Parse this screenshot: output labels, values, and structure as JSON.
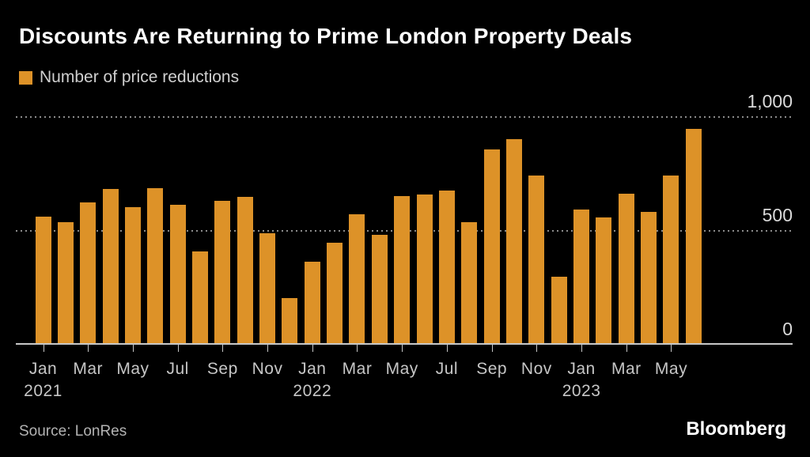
{
  "chart_data": {
    "type": "bar",
    "title": "Discounts Are Returning to Prime London Property Deals",
    "legend": "Number of price reductions",
    "bar_color": "#DD9228",
    "ylim": [
      0,
      1000
    ],
    "grid": "dotted horizontal at 500 and 1000",
    "legend_position": "top-left",
    "yticks": [
      {
        "value": 0,
        "label": "0"
      },
      {
        "value": 500,
        "label": "500"
      },
      {
        "value": 1000,
        "label": "1,000"
      }
    ],
    "x": [
      "Jan 2021",
      "Feb 2021",
      "Mar 2021",
      "Apr 2021",
      "May 2021",
      "Jun 2021",
      "Jul 2021",
      "Aug 2021",
      "Sep 2021",
      "Oct 2021",
      "Nov 2021",
      "Dec 2021",
      "Jan 2022",
      "Feb 2022",
      "Mar 2022",
      "Apr 2022",
      "May 2022",
      "Jun 2022",
      "Jul 2022",
      "Aug 2022",
      "Sep 2022",
      "Oct 2022",
      "Nov 2022",
      "Dec 2022",
      "Jan 2023",
      "Feb 2023",
      "Mar 2023",
      "Apr 2023",
      "May 2023",
      "Jun 2023"
    ],
    "values": [
      560,
      535,
      620,
      680,
      600,
      685,
      610,
      405,
      630,
      645,
      485,
      200,
      360,
      445,
      570,
      480,
      650,
      655,
      675,
      535,
      855,
      900,
      740,
      295,
      590,
      555,
      660,
      580,
      740,
      945
    ],
    "xticks": [
      {
        "index": 0,
        "month": "Jan",
        "year": "2021"
      },
      {
        "index": 2,
        "month": "Mar"
      },
      {
        "index": 4,
        "month": "May"
      },
      {
        "index": 6,
        "month": "Jul"
      },
      {
        "index": 8,
        "month": "Sep"
      },
      {
        "index": 10,
        "month": "Nov"
      },
      {
        "index": 12,
        "month": "Jan",
        "year": "2022"
      },
      {
        "index": 14,
        "month": "Mar"
      },
      {
        "index": 16,
        "month": "May"
      },
      {
        "index": 18,
        "month": "Jul"
      },
      {
        "index": 20,
        "month": "Sep"
      },
      {
        "index": 22,
        "month": "Nov"
      },
      {
        "index": 24,
        "month": "Jan",
        "year": "2023"
      },
      {
        "index": 26,
        "month": "Mar"
      },
      {
        "index": 28,
        "month": "May"
      }
    ]
  },
  "colors": {
    "background": "#000000",
    "bar": "#DD9228",
    "title_text": "#FFFFFF",
    "axis_text": "#C6C6C6",
    "gridline": "#8C8C8C",
    "axis_line": "#C8C8C8"
  },
  "footer": {
    "source": "Source: LonRes",
    "brand": "Bloomberg"
  }
}
